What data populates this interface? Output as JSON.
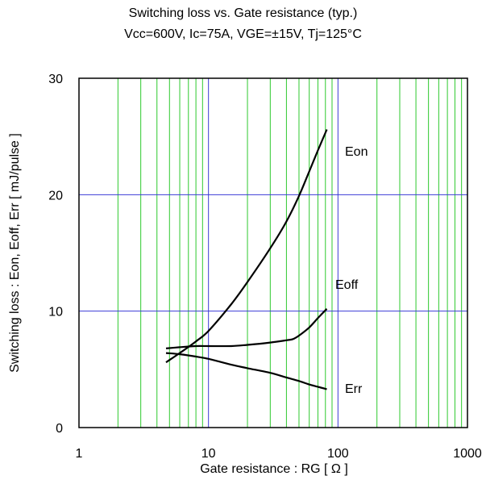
{
  "chart_data": {
    "type": "line",
    "title": "Switching loss vs. Gate resistance (typ.)",
    "subtitle": "Vcc=600V, Ic=75A, VGE=±15V, Tj=125°C",
    "xlabel": "Gate resistance : RG [ Ω ]",
    "ylabel": "Switching loss : Eon, Eoff, Err [ mJ/pulse ]",
    "x_scale": "log",
    "xlim": [
      1,
      1000
    ],
    "ylim": [
      0,
      30
    ],
    "x_ticks": [
      "1",
      "10",
      "100",
      "1000"
    ],
    "y_ticks": [
      "0",
      "10",
      "20",
      "30"
    ],
    "grid": true,
    "series": [
      {
        "name": "Eon",
        "color": "#000000",
        "x": [
          4.7,
          6,
          8,
          10,
          15,
          20,
          30,
          40,
          50,
          60,
          70,
          82
        ],
        "y": [
          5.6,
          6.4,
          7.4,
          8.3,
          10.6,
          12.5,
          15.4,
          17.7,
          19.9,
          22.0,
          23.8,
          25.6
        ]
      },
      {
        "name": "Eoff",
        "color": "#000000",
        "x": [
          4.7,
          6,
          8,
          10,
          15,
          20,
          30,
          40,
          45,
          50,
          60,
          70,
          82
        ],
        "y": [
          6.8,
          6.9,
          7.0,
          7.0,
          7.0,
          7.1,
          7.3,
          7.5,
          7.6,
          7.9,
          8.6,
          9.4,
          10.2
        ]
      },
      {
        "name": "Err",
        "color": "#000000",
        "x": [
          4.7,
          6,
          8,
          10,
          15,
          20,
          30,
          40,
          50,
          60,
          70,
          82
        ],
        "y": [
          6.4,
          6.3,
          6.1,
          5.9,
          5.4,
          5.1,
          4.7,
          4.3,
          4.0,
          3.7,
          3.5,
          3.3
        ]
      }
    ],
    "colors": {
      "major_grid": "#3b3bd6",
      "minor_grid": "#2ec92e",
      "frame": "#000000"
    }
  }
}
